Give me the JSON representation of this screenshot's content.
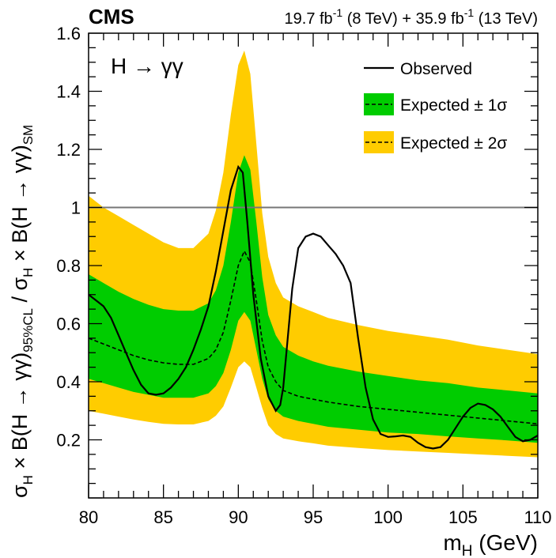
{
  "chart_data": {
    "type": "area",
    "experiment": "CMS",
    "luminosity_parts": [
      "19.7 fb",
      "-1",
      " (8 TeV) + 35.9 fb",
      "-1",
      " (13 TeV)"
    ],
    "channel_label": "H → γγ",
    "xlabel_main": "m",
    "xlabel_sub": "H",
    "xlabel_unit": " (GeV)",
    "ylabel_parts": [
      "σ",
      "H",
      " × B(H → γγ)",
      "95%CL",
      " / σ",
      "H",
      " × B(H → γγ)",
      "SM"
    ],
    "xlim": [
      80,
      110
    ],
    "ylim": [
      0,
      1.6
    ],
    "xticks": [
      80,
      85,
      90,
      95,
      100,
      105,
      110
    ],
    "yticks": [
      0.2,
      0.4,
      0.6,
      0.8,
      1.0,
      1.2,
      1.4,
      1.6
    ],
    "ytick_labels": [
      "0.2",
      "0.4",
      "0.6",
      "0.8",
      "1",
      "1.2",
      "1.4",
      "1.6"
    ],
    "reference_line": 1.0,
    "legend": {
      "position": "top-right",
      "entries": [
        "Observed",
        "Expected ± 1σ",
        "Expected ± 2σ"
      ]
    },
    "colors": {
      "band1": "#00cc00",
      "band2": "#ffcc00",
      "line": "#000000",
      "reference": "#777777"
    },
    "x": [
      80,
      81,
      82,
      83,
      84,
      85,
      86,
      87,
      88,
      88.5,
      89,
      89.5,
      90,
      90.4,
      90.8,
      91.2,
      91.6,
      92,
      92.5,
      93,
      94,
      95,
      96,
      98,
      100,
      102,
      104,
      106,
      108,
      110
    ],
    "series": [
      {
        "name": "Expected",
        "values": [
          0.55,
          0.53,
          0.51,
          0.49,
          0.475,
          0.465,
          0.46,
          0.46,
          0.48,
          0.51,
          0.57,
          0.68,
          0.8,
          0.85,
          0.81,
          0.68,
          0.54,
          0.45,
          0.4,
          0.37,
          0.35,
          0.34,
          0.33,
          0.315,
          0.305,
          0.295,
          0.285,
          0.275,
          0.265,
          0.255
        ]
      },
      {
        "name": "Expected - 1 sigma",
        "values": [
          0.41,
          0.395,
          0.38,
          0.365,
          0.355,
          0.345,
          0.345,
          0.345,
          0.36,
          0.385,
          0.43,
          0.51,
          0.61,
          0.64,
          0.61,
          0.51,
          0.41,
          0.34,
          0.3,
          0.28,
          0.265,
          0.255,
          0.245,
          0.235,
          0.225,
          0.22,
          0.212,
          0.205,
          0.198,
          0.19
        ]
      },
      {
        "name": "Expected + 1 sigma",
        "values": [
          0.77,
          0.74,
          0.71,
          0.685,
          0.665,
          0.65,
          0.645,
          0.645,
          0.67,
          0.715,
          0.8,
          0.95,
          1.12,
          1.18,
          1.13,
          0.95,
          0.76,
          0.63,
          0.56,
          0.52,
          0.49,
          0.47,
          0.455,
          0.435,
          0.42,
          0.405,
          0.395,
          0.38,
          0.37,
          0.36
        ]
      },
      {
        "name": "Expected - 2 sigma",
        "values": [
          0.3,
          0.29,
          0.28,
          0.27,
          0.262,
          0.255,
          0.253,
          0.253,
          0.265,
          0.283,
          0.315,
          0.38,
          0.45,
          0.47,
          0.45,
          0.38,
          0.31,
          0.25,
          0.22,
          0.205,
          0.195,
          0.188,
          0.18,
          0.172,
          0.165,
          0.16,
          0.155,
          0.15,
          0.145,
          0.14
        ]
      },
      {
        "name": "Expected + 2 sigma",
        "values": [
          1.04,
          1.0,
          0.97,
          0.94,
          0.91,
          0.88,
          0.86,
          0.86,
          0.91,
          0.99,
          1.12,
          1.32,
          1.49,
          1.54,
          1.46,
          1.22,
          0.98,
          0.83,
          0.74,
          0.69,
          0.66,
          0.64,
          0.62,
          0.595,
          0.575,
          0.56,
          0.545,
          0.525,
          0.51,
          0.495
        ]
      },
      {
        "name": "Observed",
        "x": [
          80,
          80.5,
          81,
          81.5,
          82,
          82.5,
          83,
          83.5,
          84,
          84.5,
          85,
          85.5,
          86,
          86.5,
          87,
          87.5,
          88,
          88.5,
          89,
          89.5,
          90,
          90.3,
          90.6,
          91,
          91.5,
          92,
          92.5,
          92.8,
          93,
          93.3,
          93.6,
          94,
          94.5,
          95,
          95.5,
          96,
          96.5,
          97,
          97.5,
          98,
          98.5,
          99,
          99.5,
          100,
          100.5,
          101,
          101.5,
          102,
          102.5,
          103,
          103.5,
          104,
          104.5,
          105,
          105.5,
          106,
          106.5,
          107,
          107.5,
          108,
          108.5,
          109,
          109.5,
          110
        ],
        "values": [
          0.7,
          0.68,
          0.66,
          0.62,
          0.56,
          0.5,
          0.44,
          0.39,
          0.36,
          0.355,
          0.36,
          0.38,
          0.41,
          0.45,
          0.51,
          0.58,
          0.66,
          0.78,
          0.92,
          1.06,
          1.14,
          1.12,
          0.95,
          0.7,
          0.48,
          0.35,
          0.3,
          0.32,
          0.38,
          0.55,
          0.72,
          0.86,
          0.9,
          0.91,
          0.9,
          0.87,
          0.84,
          0.8,
          0.74,
          0.55,
          0.38,
          0.27,
          0.22,
          0.21,
          0.212,
          0.215,
          0.21,
          0.19,
          0.175,
          0.17,
          0.175,
          0.2,
          0.24,
          0.28,
          0.31,
          0.325,
          0.32,
          0.305,
          0.28,
          0.245,
          0.21,
          0.195,
          0.2,
          0.215
        ]
      }
    ]
  }
}
